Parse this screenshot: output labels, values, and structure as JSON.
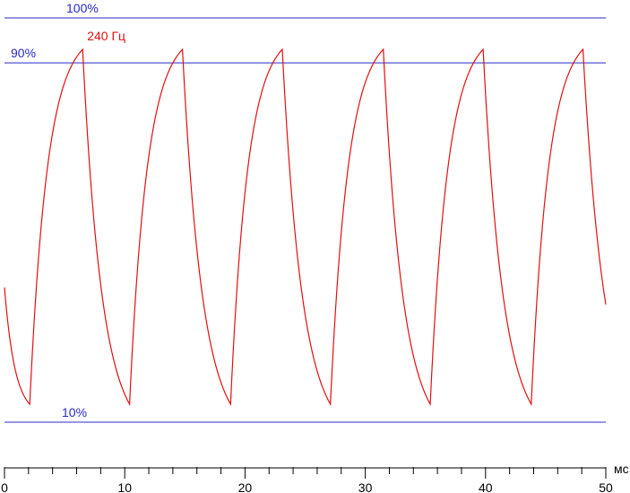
{
  "chart_data": {
    "type": "line",
    "x_unit": "мс",
    "xlim": [
      0,
      50
    ],
    "x_ticks": [
      0,
      10,
      20,
      30,
      40,
      50
    ],
    "x_minor_step": 2,
    "ylim": [
      0,
      110
    ],
    "grid": false,
    "reference_lines": [
      {
        "label": "100%",
        "value": 100,
        "color": "#2828c8"
      },
      {
        "label": "90%",
        "value": 90,
        "color": "#2828c8"
      },
      {
        "label": "10%",
        "value": 10,
        "color": "#2828c8"
      }
    ],
    "series": [
      {
        "name": "240 Гц",
        "color": "#e01010",
        "period_ms": 8.33,
        "start_level": 40,
        "end_level": 40,
        "peak_level": 93,
        "trough_level": 14,
        "peaks_ms": [
          6.5,
          14.8,
          23.1,
          31.5,
          39.8,
          48.1
        ],
        "troughs_ms": [
          2.1,
          10.4,
          18.8,
          27.1,
          35.4,
          43.8
        ]
      }
    ]
  }
}
